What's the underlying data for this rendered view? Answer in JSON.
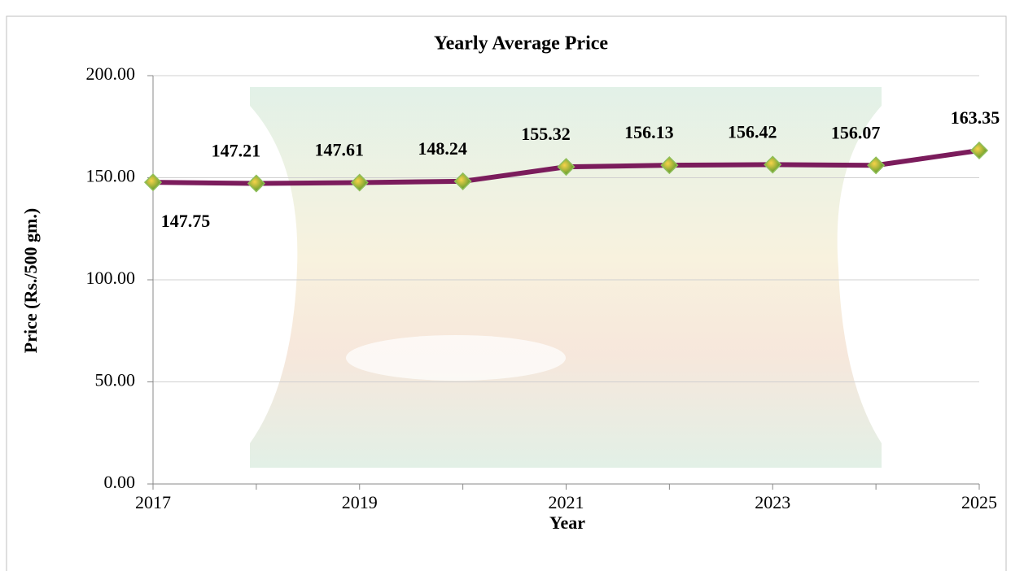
{
  "chart_data": {
    "type": "line",
    "title": "Yearly Average Price",
    "x_label": "Year",
    "y_label": "Price (Rs./500 gm.)",
    "x": [
      2017,
      2018,
      2019,
      2020,
      2021,
      2022,
      2023,
      2024,
      2025
    ],
    "series": [
      {
        "name": "Yearly Average Price",
        "color": "#7b1c5c",
        "values": [
          147.75,
          147.21,
          147.61,
          148.24,
          155.32,
          156.13,
          156.42,
          156.07,
          163.35
        ]
      }
    ],
    "xlim": [
      2017,
      2025
    ],
    "xticks": [
      2017,
      2019,
      2021,
      2023,
      2025
    ],
    "ylim": [
      0,
      200
    ],
    "yticks": [
      {
        "value": 0,
        "label": "0.00"
      },
      {
        "value": 50,
        "label": "50.00"
      },
      {
        "value": 100,
        "label": "100.00"
      },
      {
        "value": 150,
        "label": "150.00"
      },
      {
        "value": 200,
        "label": "200.00"
      }
    ],
    "grid": true
  }
}
